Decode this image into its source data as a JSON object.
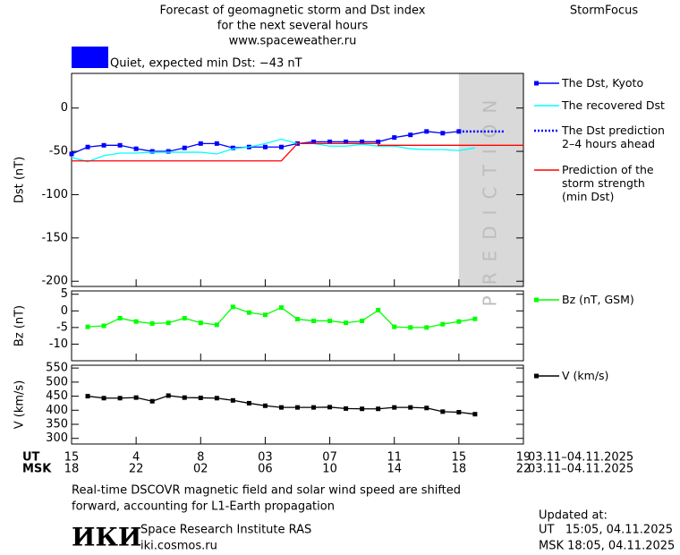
{
  "header": {
    "title": [
      "Forecast of geomagnetic storm and Dst index",
      "for the next several hours",
      "www.spaceweather.ru"
    ],
    "brand": "StormFocus"
  },
  "status": {
    "color": "#0000ff",
    "text": "Quiet, expected min Dst: −43 nT"
  },
  "chart_data": [
    {
      "type": "line",
      "ylabel": "Dst (nT)",
      "xlim": [
        0,
        28
      ],
      "ylim": [
        -206,
        40
      ],
      "yticks": [
        0,
        -50,
        -100,
        -150,
        -200
      ],
      "grid": false,
      "prediction_span": [
        24,
        28
      ],
      "prediction_label": "PREDICTION",
      "series": [
        {
          "name": "The Dst, Kyoto",
          "color": "#0000ff",
          "style": "solid",
          "marker": true,
          "x": [
            0,
            1,
            2,
            3,
            4,
            5,
            6,
            7,
            8,
            9,
            10,
            11,
            12,
            13,
            14,
            15,
            16,
            17,
            18,
            19,
            20,
            21,
            22,
            23,
            24
          ],
          "values": [
            -53,
            -45,
            -43,
            -43,
            -47,
            -50,
            -50,
            -46,
            -41,
            -41,
            -46,
            -45,
            -45,
            -45,
            -41,
            -39,
            -39,
            -39,
            -39,
            -39,
            -34,
            -31,
            -27,
            -29,
            -27
          ]
        },
        {
          "name": "The recovered Dst",
          "color": "#00ffff",
          "style": "solid",
          "marker": false,
          "x": [
            0,
            1,
            2,
            3,
            4,
            5,
            6,
            7,
            8,
            9,
            10,
            11,
            12,
            13,
            14,
            15,
            16,
            17,
            18,
            19,
            20,
            21,
            22,
            23,
            24,
            25
          ],
          "values": [
            -57,
            -62,
            -55,
            -52,
            -52,
            -51,
            -51,
            -51,
            -51,
            -53,
            -47,
            -45,
            -41,
            -36,
            -41,
            -41,
            -44,
            -44,
            -42,
            -44,
            -44,
            -47,
            -48,
            -48,
            -49,
            -46
          ]
        },
        {
          "name": "The Dst prediction\n2–4 hours ahead",
          "color": "#0000ff",
          "style": "dotted",
          "marker": false,
          "x": [
            24,
            26.8
          ],
          "values": [
            -27,
            -27
          ]
        },
        {
          "name": "Prediction of the\nstorm strength\n(min Dst)",
          "color": "#ff0000",
          "style": "solid",
          "marker": false,
          "x": [
            0,
            13,
            14,
            19,
            19,
            28
          ],
          "values": [
            -61,
            -61,
            -41,
            -41,
            -43,
            -43
          ]
        }
      ]
    },
    {
      "type": "line",
      "ylabel": "Bz (nT)",
      "xlim": [
        0,
        28
      ],
      "ylim": [
        -15,
        6
      ],
      "yticks": [
        5,
        0,
        -5,
        -10
      ],
      "grid": false,
      "series": [
        {
          "name": "Bz (nT, GSM)",
          "color": "#00ff00",
          "style": "solid",
          "marker": true,
          "x": [
            1,
            2,
            3,
            4,
            5,
            6,
            7,
            8,
            9,
            10,
            11,
            12,
            13,
            14,
            15,
            16,
            17,
            18,
            19,
            20,
            21,
            22,
            23,
            24,
            25
          ],
          "values": [
            -4.8,
            -4.5,
            -2.2,
            -3.2,
            -3.8,
            -3.6,
            -2.2,
            -3.6,
            -4.2,
            1.2,
            -0.5,
            -1.2,
            1,
            -2.5,
            -3,
            -3,
            -3.6,
            -3,
            0.2,
            -4.8,
            -5,
            -5,
            -4,
            -3.2,
            -2.4
          ]
        }
      ]
    },
    {
      "type": "line",
      "ylabel": "V (km/s)",
      "xlim": [
        0,
        28
      ],
      "ylim": [
        280,
        560
      ],
      "yticks": [
        550,
        500,
        450,
        400,
        350,
        300
      ],
      "grid": false,
      "series": [
        {
          "name": "V (km/s)",
          "color": "#000000",
          "style": "solid",
          "marker": true,
          "x": [
            1,
            2,
            3,
            4,
            5,
            6,
            7,
            8,
            9,
            10,
            11,
            12,
            13,
            14,
            15,
            16,
            17,
            18,
            19,
            20,
            21,
            22,
            23,
            24,
            25
          ],
          "values": [
            450,
            443,
            443,
            445,
            432,
            452,
            445,
            444,
            443,
            435,
            425,
            416,
            410,
            410,
            410,
            411,
            406,
            405,
            405,
            410,
            410,
            408,
            395,
            393,
            386
          ]
        }
      ],
      "xtick_rows": [
        {
          "name": "UT",
          "dates": "03.11–04.11.2025",
          "ticks": [
            {
              "value": 0,
              "label": "15"
            },
            4,
            8,
            {
              "value": 12,
              "label": "03"
            },
            {
              "value": 16,
              "label": "07"
            },
            {
              "value": 20,
              "label": "11"
            },
            {
              "value": 24,
              "label": "15"
            },
            {
              "value": 28,
              "label": "19"
            }
          ]
        },
        {
          "name": "MSK",
          "dates": "03.11–04.11.2025",
          "ticks": [
            {
              "value": 0,
              "label": "18"
            },
            {
              "value": 4,
              "label": "22"
            },
            {
              "value": 8,
              "label": "02"
            },
            {
              "value": 12,
              "label": "06"
            },
            {
              "value": 16,
              "label": "10"
            },
            {
              "value": 20,
              "label": "14"
            },
            {
              "value": 24,
              "label": "18"
            },
            {
              "value": 28,
              "label": "22"
            }
          ]
        }
      ]
    }
  ],
  "footer": {
    "note": [
      "Real-time DSCOVR magnetic field and solar wind speed are shifted",
      "forward, accounting for L1-Earth propagation"
    ],
    "logo": "ИКИ",
    "institute": "Space Research Institute RAS",
    "site": "iki.cosmos.ru",
    "updated": {
      "title": "Updated at:",
      "rows": [
        "UT   15:05, 04.11.2025",
        "MSK 18:05, 04.11.2025"
      ]
    }
  }
}
